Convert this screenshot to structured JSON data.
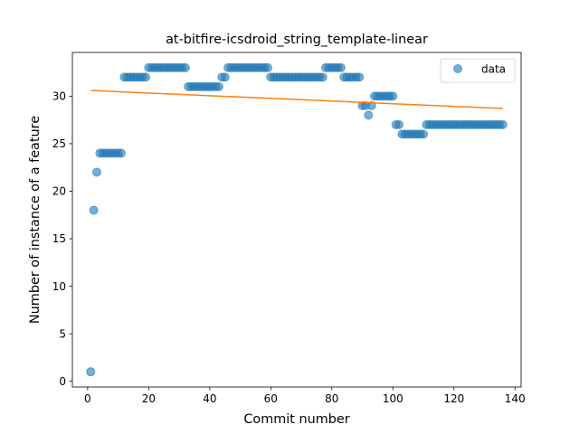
{
  "chart_data": {
    "type": "scatter",
    "title": "at-bitfire-icsdroid_string_template-linear",
    "xlabel": "Commit number",
    "ylabel": "Number of instance of a feature",
    "xlim": [
      -5,
      142
    ],
    "ylim": [
      -0.6,
      34.6
    ],
    "xticks": [
      0,
      20,
      40,
      60,
      80,
      100,
      120,
      140
    ],
    "yticks": [
      0,
      5,
      10,
      15,
      20,
      25,
      30
    ],
    "legend": {
      "placement": "top-right",
      "entries": [
        "data"
      ]
    },
    "grid": false,
    "colors": {
      "scatter": "#1f77b4",
      "fit": "#ff7f0e"
    },
    "series": [
      {
        "name": "data",
        "type": "scatter",
        "x": [
          1,
          2,
          3,
          4,
          5,
          6,
          7,
          8,
          9,
          10,
          11,
          12,
          13,
          14,
          15,
          16,
          17,
          18,
          19,
          20,
          21,
          22,
          23,
          24,
          25,
          26,
          27,
          28,
          29,
          30,
          31,
          32,
          33,
          34,
          35,
          36,
          37,
          38,
          39,
          40,
          41,
          42,
          43,
          44,
          45,
          46,
          47,
          48,
          49,
          50,
          51,
          52,
          53,
          54,
          55,
          56,
          57,
          58,
          59,
          60,
          61,
          62,
          63,
          64,
          65,
          66,
          67,
          68,
          69,
          70,
          71,
          72,
          73,
          74,
          75,
          76,
          77,
          78,
          79,
          80,
          81,
          82,
          83,
          84,
          85,
          86,
          87,
          88,
          89,
          90,
          91,
          92,
          93,
          94,
          95,
          96,
          97,
          98,
          99,
          100,
          101,
          102,
          103,
          104,
          105,
          106,
          107,
          108,
          109,
          110,
          111,
          112,
          113,
          114,
          115,
          116,
          117,
          118,
          119,
          120,
          121,
          122,
          123,
          124,
          125,
          126,
          127,
          128,
          129,
          130,
          131,
          132,
          133,
          134,
          135,
          136
        ],
        "y": [
          1,
          18,
          22,
          24,
          24,
          24,
          24,
          24,
          24,
          24,
          24,
          32,
          32,
          32,
          32,
          32,
          32,
          32,
          32,
          33,
          33,
          33,
          33,
          33,
          33,
          33,
          33,
          33,
          33,
          33,
          33,
          33,
          31,
          31,
          31,
          31,
          31,
          31,
          31,
          31,
          31,
          31,
          31,
          32,
          32,
          33,
          33,
          33,
          33,
          33,
          33,
          33,
          33,
          33,
          33,
          33,
          33,
          33,
          33,
          32,
          32,
          32,
          32,
          32,
          32,
          32,
          32,
          32,
          32,
          32,
          32,
          32,
          32,
          32,
          32,
          32,
          32,
          33,
          33,
          33,
          33,
          33,
          33,
          32,
          32,
          32,
          32,
          32,
          32,
          29,
          29,
          28,
          29,
          30,
          30,
          30,
          30,
          30,
          30,
          30,
          27,
          27,
          26,
          26,
          26,
          26,
          26,
          26,
          26,
          26,
          27,
          27,
          27,
          27,
          27,
          27,
          27,
          27,
          27,
          27,
          27,
          27,
          27,
          27,
          27,
          27,
          27,
          27,
          27,
          27,
          27,
          27,
          27,
          27,
          27,
          27
        ]
      },
      {
        "name": "",
        "type": "line",
        "x": [
          1,
          136
        ],
        "y": [
          30.6,
          28.7
        ]
      }
    ]
  }
}
